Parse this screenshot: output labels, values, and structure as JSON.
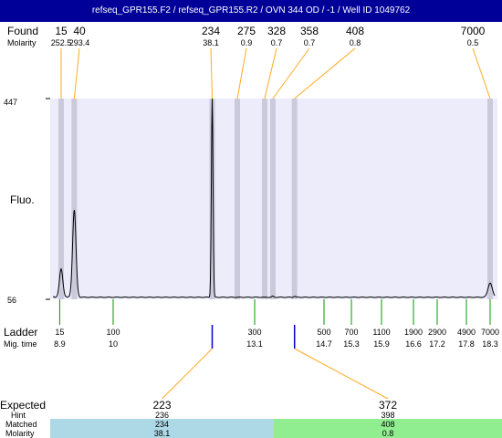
{
  "title": "refseq_GPR155.F2 / refseq_GPR155.R2 / OVN 344 OD  / -1  / Well ID 1049762",
  "labels": {
    "found": "Found",
    "molarity": "Molarity",
    "fluo": "Fluo.",
    "ladder": "Ladder",
    "mig_time": "Mig. time",
    "expected": "Expected",
    "hint": "Hint",
    "matched": "Matched",
    "molarity_bottom": "Molarity"
  },
  "colors": {
    "title_bg": "#000099",
    "plot_bg": "#ececfb",
    "band": "#c6c6d8",
    "orange": "#ffaa22",
    "ladder_tick": "#009900",
    "marker_blue": "#0000cc",
    "matched_left": "#add8e6",
    "matched_right": "#90ee90"
  },
  "chart_data": {
    "type": "line",
    "title": "refseq_GPR155.F2 / refseq_GPR155.R2 / OVN 344 OD  / -1  / Well ID 1049762",
    "xlabel": "Mig. time",
    "ylabel": "Fluo.",
    "ylim": [
      56,
      447
    ],
    "y_ticks": [
      "447",
      "56"
    ],
    "grid": false,
    "legend": "none",
    "found_peaks": [
      {
        "size": "15",
        "molarity": "252.5",
        "time": 8.93,
        "height": 115
      },
      {
        "size": "40",
        "molarity": "293.4",
        "time": 9.2,
        "height": 230
      },
      {
        "size": "234",
        "molarity": "38.1",
        "time": 12.17,
        "height": 447
      },
      {
        "size": "275",
        "molarity": "0.9",
        "time": 12.72,
        "height": 60
      },
      {
        "size": "328",
        "molarity": "0.7",
        "time": 13.33,
        "height": 60
      },
      {
        "size": "358",
        "molarity": "0.7",
        "time": 13.52,
        "height": 62
      },
      {
        "size": "408",
        "molarity": "0.8",
        "time": 14.02,
        "height": 62
      },
      {
        "size": "7000",
        "molarity": "0.5",
        "time": 18.3,
        "height": 88
      }
    ],
    "ladder": [
      {
        "size": "15",
        "time": "8.9"
      },
      {
        "size": "100",
        "time": "10"
      },
      {
        "size": "300",
        "time": "13.1"
      },
      {
        "size": "500",
        "time": "14.7"
      },
      {
        "size": "700",
        "time": "15.3"
      },
      {
        "size": "1100",
        "time": "15.9"
      },
      {
        "size": "1900",
        "time": "16.6"
      },
      {
        "size": "2900",
        "time": "17.2"
      },
      {
        "size": "4900",
        "time": "17.8"
      },
      {
        "size": "7000",
        "time": "18.3"
      }
    ],
    "expected": [
      {
        "expected": "223",
        "hint": "236",
        "matched": "234",
        "molarity": "38.1",
        "time": 12.17,
        "color": "#add8e6"
      },
      {
        "expected": "372",
        "hint": "398",
        "matched": "408",
        "molarity": "0.8",
        "time": 14.02,
        "color": "#90ee90"
      }
    ]
  }
}
